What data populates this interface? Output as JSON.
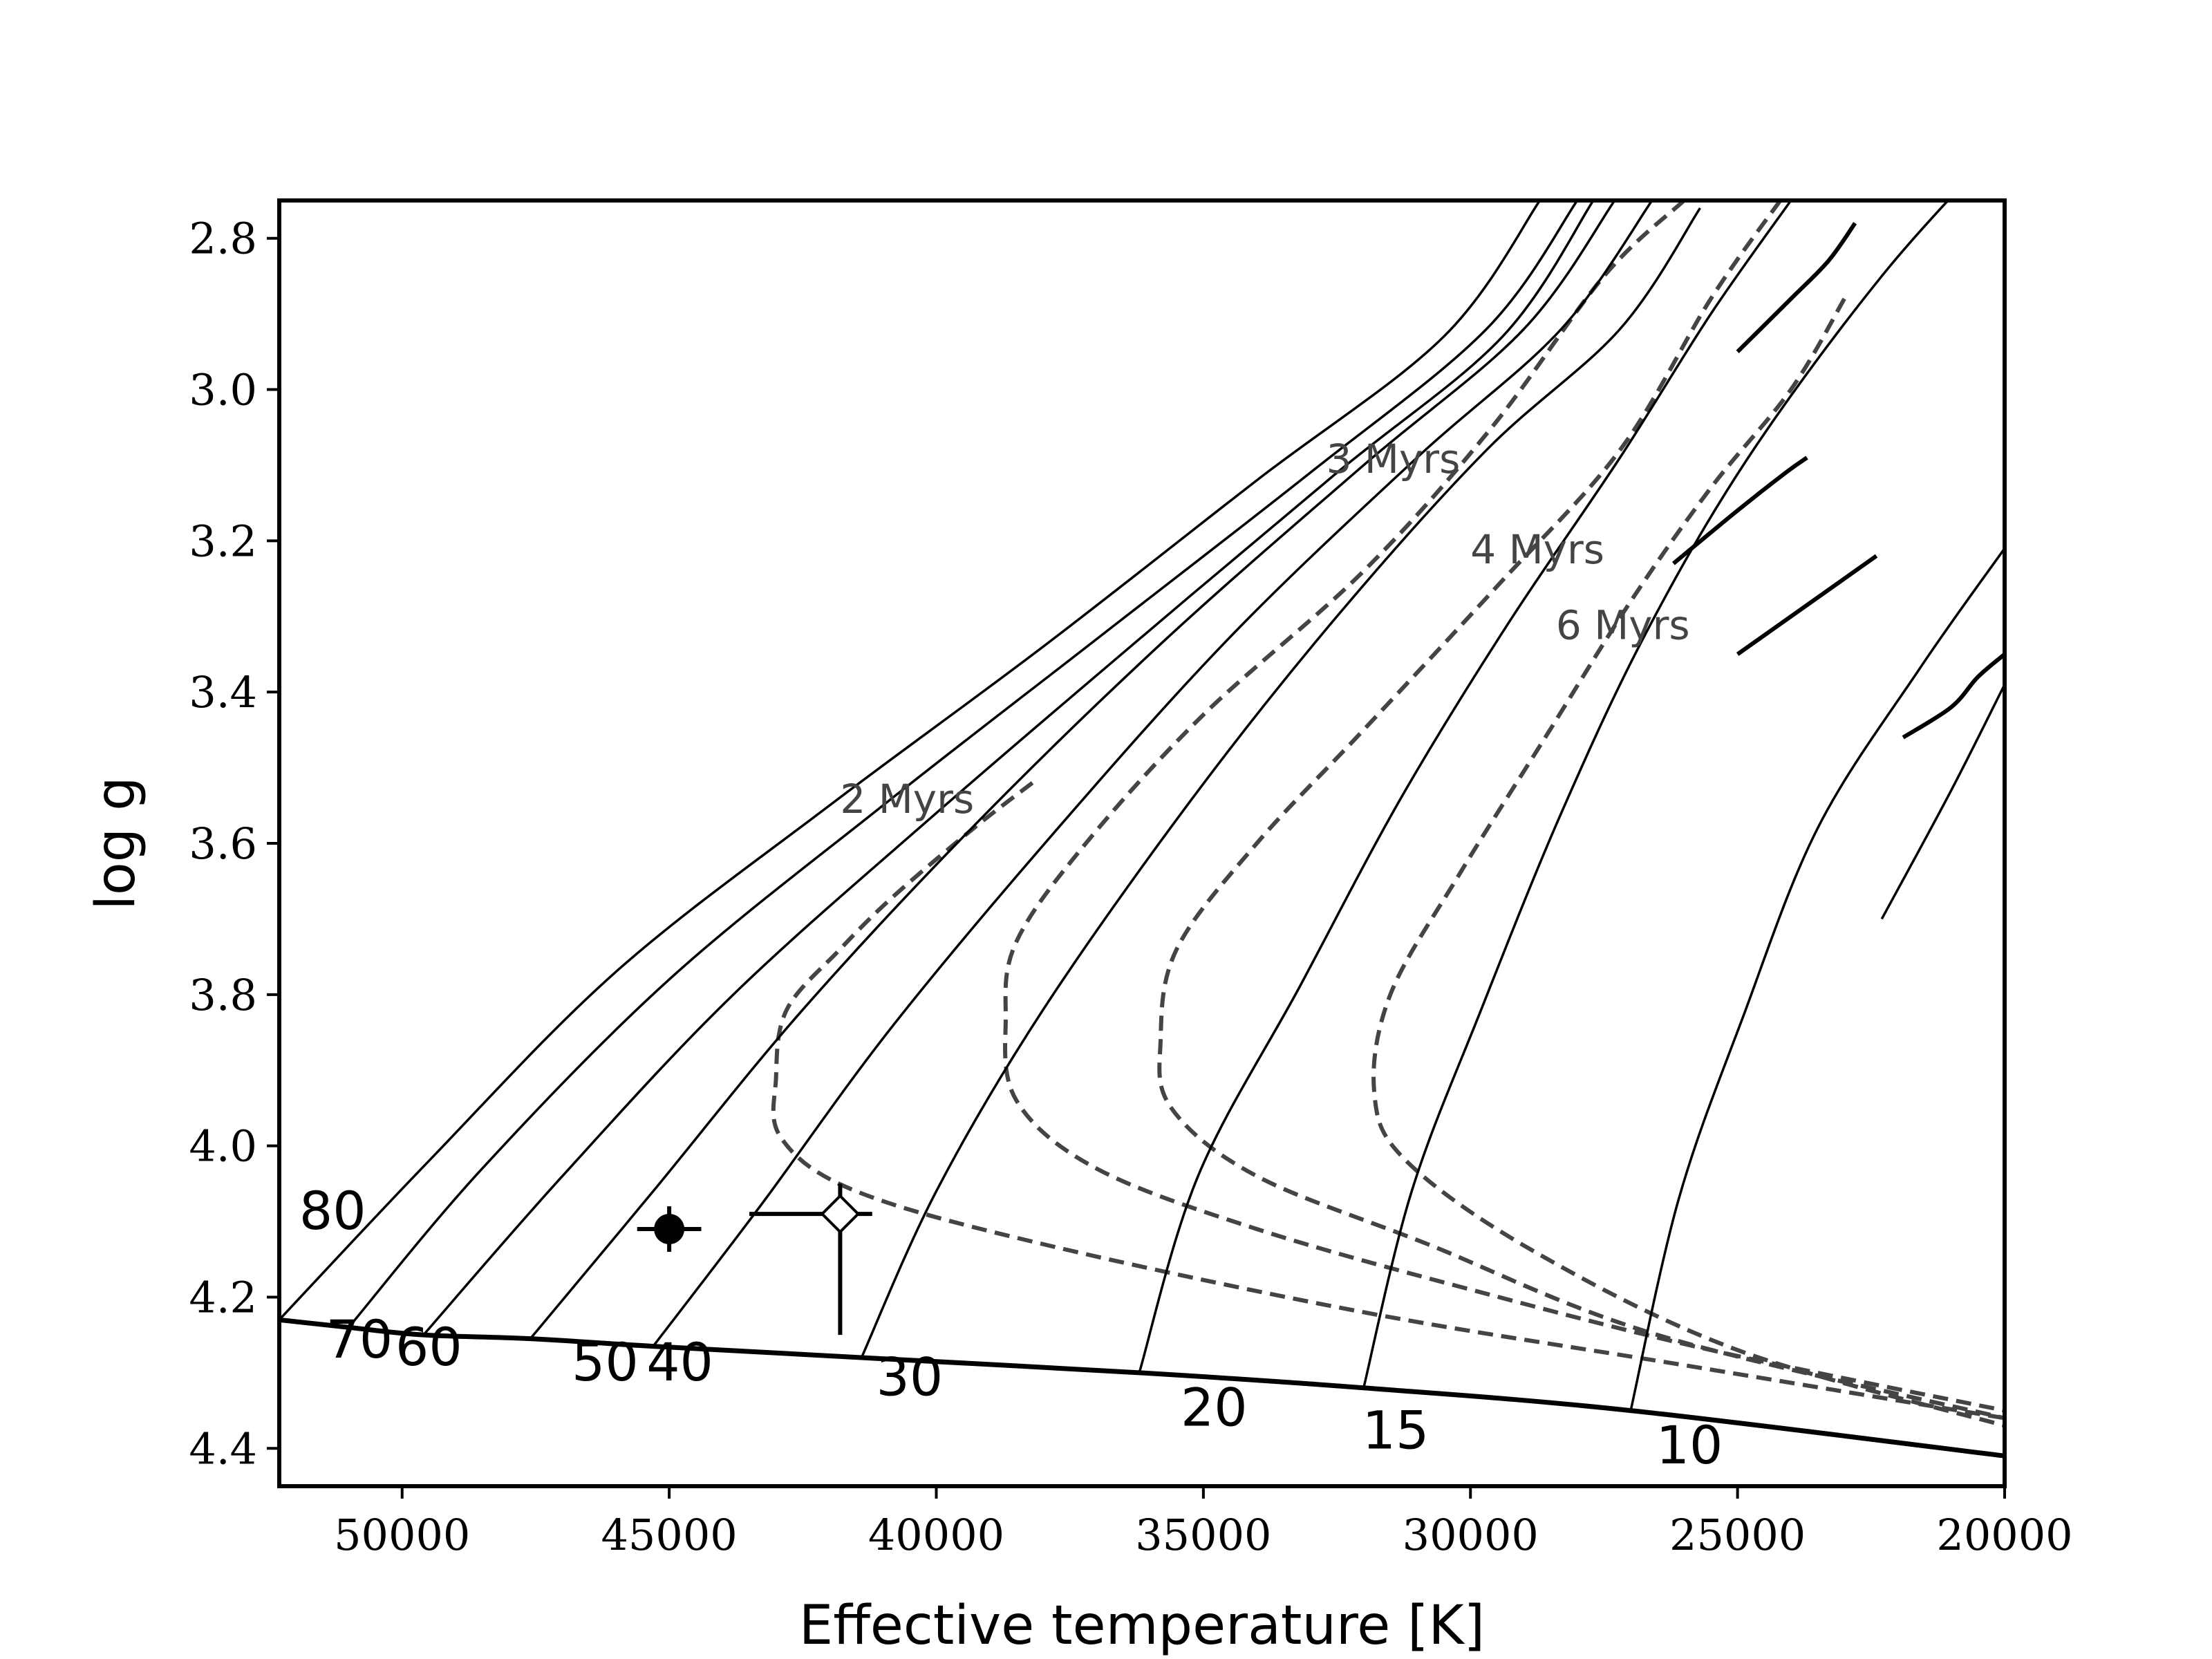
{
  "chart_data": {
    "type": "line",
    "xlabel": "Effective temperature [K]",
    "ylabel": "log g",
    "xlim": [
      52300,
      20000
    ],
    "ylim": [
      4.45,
      2.75
    ],
    "x_inverted": true,
    "y_inverted": true,
    "xticks": [
      50000,
      45000,
      40000,
      35000,
      30000,
      25000,
      20000
    ],
    "yticks": [
      2.8,
      3.0,
      3.2,
      3.4,
      3.6,
      3.8,
      4.0,
      4.2,
      4.4
    ],
    "grid": false,
    "zams": [
      [
        52300,
        4.23
      ],
      [
        51000,
        4.24
      ],
      [
        49600,
        4.25
      ],
      [
        47600,
        4.255
      ],
      [
        45300,
        4.265
      ],
      [
        41400,
        4.28
      ],
      [
        36200,
        4.3
      ],
      [
        32000,
        4.32
      ],
      [
        27000,
        4.35
      ],
      [
        20000,
        4.41
      ]
    ],
    "tracks": [
      {
        "label": "80",
        "points": [
          [
            52300,
            4.23
          ],
          [
            49500,
            4.02
          ],
          [
            46000,
            3.77
          ],
          [
            42000,
            3.55
          ],
          [
            38000,
            3.34
          ],
          [
            34000,
            3.12
          ],
          [
            30500,
            2.93
          ],
          [
            28700,
            2.75
          ]
        ]
      },
      {
        "label": "70",
        "points": [
          [
            51000,
            4.24
          ],
          [
            48500,
            4.03
          ],
          [
            45000,
            3.78
          ],
          [
            41000,
            3.55
          ],
          [
            37000,
            3.33
          ],
          [
            33000,
            3.11
          ],
          [
            29700,
            2.92
          ],
          [
            28000,
            2.75
          ]
        ]
      },
      {
        "label": "60",
        "points": [
          [
            49600,
            4.25
          ],
          [
            47000,
            4.04
          ],
          [
            43800,
            3.8
          ],
          [
            40000,
            3.56
          ],
          [
            36200,
            3.33
          ],
          [
            32500,
            3.11
          ],
          [
            29400,
            2.93
          ],
          [
            27700,
            2.75
          ]
        ]
      },
      {
        "label": "50",
        "points": [
          [
            47600,
            4.255
          ],
          [
            45300,
            4.06
          ],
          [
            42500,
            3.82
          ],
          [
            39200,
            3.57
          ],
          [
            35700,
            3.33
          ],
          [
            32000,
            3.1
          ],
          [
            29000,
            2.92
          ],
          [
            27300,
            2.75
          ]
        ]
      },
      {
        "label": "40",
        "points": [
          [
            45300,
            4.265
          ],
          [
            43300,
            4.08
          ],
          [
            40800,
            3.84
          ],
          [
            37600,
            3.57
          ],
          [
            34400,
            3.32
          ],
          [
            31000,
            3.09
          ],
          [
            28300,
            2.92
          ],
          [
            26600,
            2.75
          ]
        ]
      },
      {
        "label": "30",
        "points": [
          [
            41400,
            4.28
          ],
          [
            40000,
            4.06
          ],
          [
            38000,
            3.82
          ],
          [
            35200,
            3.54
          ],
          [
            32500,
            3.3
          ],
          [
            29700,
            3.08
          ],
          [
            27200,
            2.92
          ],
          [
            25700,
            2.76
          ]
        ]
      },
      {
        "label": "20",
        "points": [
          [
            36200,
            4.3
          ],
          [
            35100,
            4.04
          ],
          [
            33200,
            3.79
          ],
          [
            31300,
            3.54
          ],
          [
            29300,
            3.31
          ],
          [
            27200,
            3.09
          ],
          [
            25500,
            2.9
          ],
          [
            24000,
            2.75
          ]
        ]
      },
      {
        "label": "15",
        "points": [
          [
            32000,
            4.32
          ],
          [
            31100,
            4.06
          ],
          [
            29800,
            3.82
          ],
          [
            28300,
            3.56
          ],
          [
            26700,
            3.32
          ],
          [
            24800,
            3.09
          ],
          [
            22300,
            2.85
          ],
          [
            20000,
            2.67
          ]
        ]
      },
      {
        "label": "10",
        "points": [
          [
            27000,
            4.35
          ],
          [
            26100,
            4.07
          ],
          [
            24900,
            3.83
          ],
          [
            23500,
            3.58
          ],
          [
            21600,
            3.37
          ],
          [
            20000,
            3.21
          ]
        ]
      },
      {
        "label": "",
        "points": [
          [
            20000,
            3.39
          ],
          [
            21000,
            3.53
          ],
          [
            22300,
            3.7
          ]
        ]
      }
    ],
    "hooks": [
      [
        [
          25000,
          2.95
        ],
        [
          24000,
          2.88
        ],
        [
          23300,
          2.83
        ],
        [
          22800,
          2.78
        ]
      ],
      [
        [
          26200,
          3.23
        ],
        [
          25000,
          3.16
        ],
        [
          24100,
          3.11
        ],
        [
          23700,
          3.09
        ]
      ],
      [
        [
          25000,
          3.35
        ],
        [
          23800,
          3.29
        ],
        [
          23000,
          3.25
        ],
        [
          22400,
          3.22
        ]
      ],
      [
        [
          21900,
          3.46
        ],
        [
          21000,
          3.42
        ],
        [
          20500,
          3.38
        ],
        [
          20000,
          3.35
        ]
      ]
    ],
    "isochrones": [
      {
        "label": "2 Myrs",
        "points": [
          [
            38200,
            3.52
          ],
          [
            39300,
            3.58
          ],
          [
            40800,
            3.67
          ],
          [
            41800,
            3.74
          ],
          [
            42800,
            3.82
          ],
          [
            43000,
            3.91
          ],
          [
            42900,
            3.99
          ],
          [
            41500,
            4.06
          ],
          [
            38000,
            4.13
          ],
          [
            32000,
            4.22
          ],
          [
            26000,
            4.29
          ],
          [
            20000,
            4.36
          ]
        ]
      },
      {
        "label": "3 Myrs",
        "points": [
          [
            26000,
            2.75
          ],
          [
            27500,
            2.85
          ],
          [
            29600,
            3.05
          ],
          [
            32000,
            3.24
          ],
          [
            35000,
            3.43
          ],
          [
            37200,
            3.6
          ],
          [
            38500,
            3.73
          ],
          [
            38700,
            3.83
          ],
          [
            38500,
            3.94
          ],
          [
            37000,
            4.03
          ],
          [
            34000,
            4.11
          ],
          [
            30000,
            4.19
          ],
          [
            25500,
            4.27
          ],
          [
            20000,
            4.35
          ]
        ]
      },
      {
        "label": "4 Myrs",
        "points": [
          [
            24200,
            2.75
          ],
          [
            25500,
            2.88
          ],
          [
            27200,
            3.08
          ],
          [
            29500,
            3.26
          ],
          [
            32000,
            3.45
          ],
          [
            34000,
            3.6
          ],
          [
            35500,
            3.74
          ],
          [
            35800,
            3.86
          ],
          [
            35600,
            3.95
          ],
          [
            34000,
            4.04
          ],
          [
            30800,
            4.13
          ],
          [
            26500,
            4.25
          ],
          [
            20000,
            4.36
          ]
        ]
      },
      {
        "label": "6 Myrs",
        "points": [
          [
            23000,
            2.88
          ],
          [
            24000,
            3.0
          ],
          [
            25500,
            3.13
          ],
          [
            27000,
            3.28
          ],
          [
            28600,
            3.46
          ],
          [
            30200,
            3.64
          ],
          [
            31500,
            3.8
          ],
          [
            31800,
            3.93
          ],
          [
            31200,
            4.02
          ],
          [
            28800,
            4.14
          ],
          [
            25000,
            4.27
          ],
          [
            20000,
            4.37
          ]
        ]
      }
    ],
    "iso_label_positions": [
      [
        41800,
        3.56
      ],
      [
        32700,
        3.11
      ],
      [
        30000,
        3.23
      ],
      [
        28400,
        3.33
      ]
    ],
    "track_label_positions": [
      [
        51300,
        4.11
      ],
      [
        50800,
        4.28
      ],
      [
        49500,
        4.29
      ],
      [
        46200,
        4.31
      ],
      [
        44800,
        4.31
      ],
      [
        40500,
        4.33
      ],
      [
        34800,
        4.37
      ],
      [
        31400,
        4.4
      ],
      [
        25900,
        4.42
      ]
    ],
    "points": [
      {
        "name": "filled",
        "x": 45000,
        "y": 4.11,
        "xerr": [
          600,
          600
        ],
        "yerr": [
          0.03,
          0.03
        ],
        "marker": "filled-circle"
      },
      {
        "name": "open",
        "x": 41800,
        "y": 4.09,
        "xerr": [
          1700,
          600
        ],
        "yerr": [
          0.04,
          0.16
        ],
        "marker": "open-diamond"
      }
    ]
  }
}
